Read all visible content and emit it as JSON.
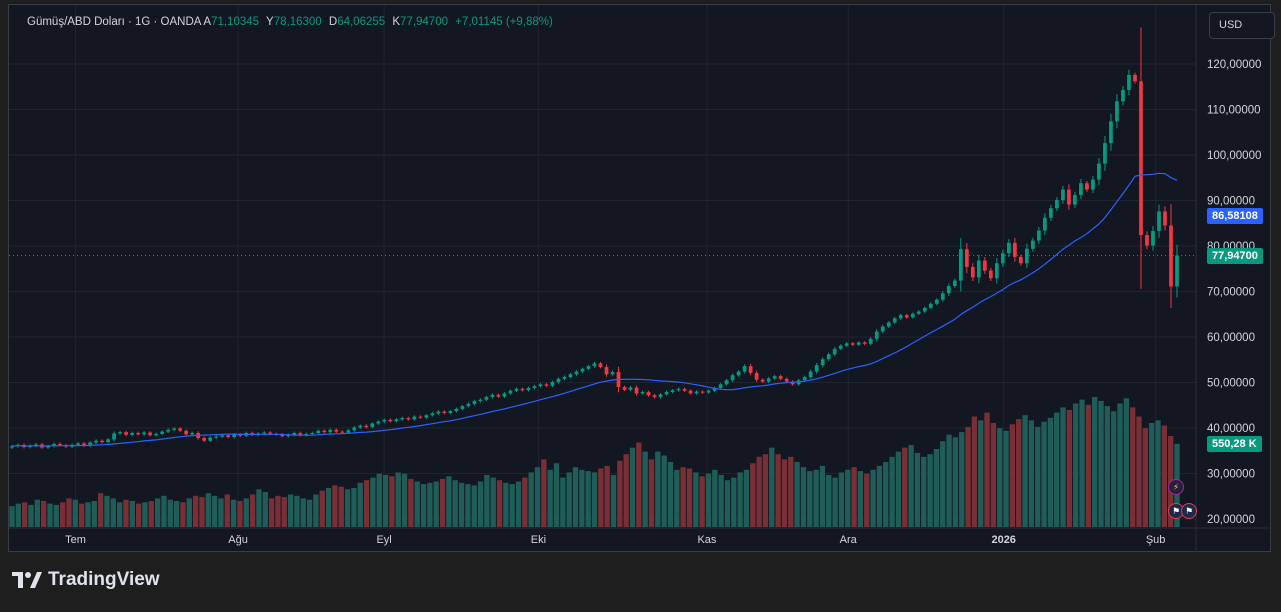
{
  "legend": {
    "symbol": "Gümüş/ABD Doları · 1G · OANDA",
    "open_label": "A",
    "open": "71,10345",
    "high_label": "Y",
    "high": "78,16300",
    "low_label": "D",
    "low": "64,06255",
    "close_label": "K",
    "close": "77,94700",
    "change": "+7,01145 (+9,88%)"
  },
  "currency_button": "USD",
  "brand": "TradingView",
  "price_tags": {
    "ma": "86,58108",
    "last": "77,94700",
    "volume": "550,28 K"
  },
  "colors": {
    "up": "#089981",
    "down": "#f23645",
    "ma": "#2962ff",
    "background": "#131722",
    "vol_up": "#1f5e58",
    "vol_down": "#7a2f36"
  },
  "chart_data": {
    "type": "candlestick",
    "ylim": [
      20,
      124
    ],
    "yticks": [
      "120,00000",
      "110,00000",
      "100,00000",
      "90,00000",
      "80,00000",
      "70,00000",
      "60,00000",
      "50,00000",
      "40,00000",
      "30,00000",
      "20,00000"
    ],
    "ytick_values": [
      120,
      110,
      100,
      90,
      80,
      70,
      60,
      50,
      40,
      30,
      20
    ],
    "xticks": [
      {
        "label": "Tem",
        "pos": 0.056
      },
      {
        "label": "Ağu",
        "pos": 0.193
      },
      {
        "label": "Eyl",
        "pos": 0.316
      },
      {
        "label": "Eki",
        "pos": 0.446
      },
      {
        "label": "Kas",
        "pos": 0.588
      },
      {
        "label": "Ara",
        "pos": 0.707
      },
      {
        "label": "2026",
        "pos": 0.838,
        "bold": true
      },
      {
        "label": "Şub",
        "pos": 0.966
      }
    ],
    "closes": [
      36.0,
      36.3,
      35.8,
      36.1,
      36.4,
      35.7,
      36.0,
      36.5,
      36.2,
      35.9,
      36.3,
      36.6,
      36.1,
      36.8,
      37.2,
      36.9,
      37.5,
      38.8,
      39.1,
      38.5,
      38.9,
      38.6,
      39.0,
      38.4,
      38.7,
      39.2,
      39.6,
      39.9,
      39.4,
      38.6,
      38.9,
      37.8,
      37.2,
      37.9,
      38.1,
      38.4,
      38.0,
      38.6,
      38.3,
      38.9,
      38.5,
      38.8,
      39.0,
      38.7,
      38.6,
      38.2,
      38.5,
      38.9,
      38.4,
      38.7,
      38.9,
      39.4,
      39.1,
      39.6,
      39.2,
      39.0,
      39.5,
      40.1,
      40.5,
      40.2,
      41.0,
      41.4,
      41.8,
      41.5,
      41.9,
      42.2,
      41.9,
      42.5,
      42.3,
      42.8,
      43.2,
      43.6,
      43.3,
      43.7,
      44.2,
      44.8,
      45.3,
      45.9,
      46.2,
      46.8,
      47.3,
      46.9,
      47.6,
      48.2,
      48.6,
      48.3,
      48.8,
      49.2,
      49.6,
      49.3,
      50.1,
      50.8,
      51.2,
      51.8,
      52.4,
      53.0,
      53.6,
      54.2,
      53.4,
      51.8,
      52.3,
      49.0,
      48.4,
      48.9,
      47.6,
      47.9,
      47.2,
      46.8,
      47.4,
      47.9,
      48.3,
      48.6,
      48.2,
      47.6,
      48.0,
      47.8,
      48.2,
      48.8,
      49.6,
      50.5,
      51.6,
      52.4,
      53.6,
      52.1,
      50.6,
      50.2,
      50.9,
      51.4,
      50.8,
      50.2,
      49.6,
      50.5,
      51.2,
      52.4,
      53.8,
      55.1,
      56.2,
      57.4,
      58.1,
      58.6,
      58.3,
      58.8,
      58.5,
      59.6,
      61.2,
      62.3,
      63.2,
      64.1,
      64.8,
      64.3,
      65.1,
      65.6,
      66.4,
      67.3,
      68.2,
      69.6,
      71.2,
      72.4,
      79.3,
      75.4,
      73.1,
      76.8,
      74.6,
      72.9,
      76.2,
      78.4,
      80.7,
      77.6,
      76.2,
      79.4,
      81.2,
      83.4,
      86.2,
      88.3,
      90.1,
      92.4,
      89.1,
      91.2,
      93.8,
      92.4,
      94.6,
      98.1,
      102.6,
      107.4,
      111.8,
      114.3,
      117.6,
      116.2,
      82.4,
      80.1,
      83.3,
      87.6,
      84.5,
      71.1,
      77.9
    ],
    "ma_note": "20-period moving average",
    "volume_levels": [
      0.16,
      0.18,
      0.19,
      0.17,
      0.21,
      0.2,
      0.18,
      0.17,
      0.19,
      0.22,
      0.21,
      0.18,
      0.19,
      0.2,
      0.26,
      0.24,
      0.22,
      0.19,
      0.21,
      0.2,
      0.18,
      0.19,
      0.2,
      0.22,
      0.24,
      0.21,
      0.2,
      0.19,
      0.22,
      0.24,
      0.23,
      0.26,
      0.24,
      0.22,
      0.25,
      0.21,
      0.2,
      0.22,
      0.25,
      0.29,
      0.27,
      0.22,
      0.24,
      0.23,
      0.25,
      0.24,
      0.22,
      0.21,
      0.25,
      0.28,
      0.3,
      0.32,
      0.31,
      0.29,
      0.3,
      0.34,
      0.36,
      0.38,
      0.41,
      0.4,
      0.39,
      0.42,
      0.41,
      0.37,
      0.35,
      0.33,
      0.34,
      0.35,
      0.37,
      0.39,
      0.36,
      0.34,
      0.33,
      0.32,
      0.35,
      0.4,
      0.38,
      0.36,
      0.34,
      0.33,
      0.35,
      0.38,
      0.42,
      0.46,
      0.52,
      0.44,
      0.49,
      0.38,
      0.42,
      0.46,
      0.44,
      0.43,
      0.42,
      0.45,
      0.47,
      0.4,
      0.51,
      0.56,
      0.61,
      0.65,
      0.58,
      0.52,
      0.58,
      0.55,
      0.5,
      0.44,
      0.46,
      0.45,
      0.42,
      0.39,
      0.41,
      0.44,
      0.4,
      0.36,
      0.38,
      0.42,
      0.44,
      0.49,
      0.54,
      0.56,
      0.61,
      0.56,
      0.52,
      0.54,
      0.5,
      0.46,
      0.43,
      0.44,
      0.47,
      0.4,
      0.38,
      0.42,
      0.44,
      0.46,
      0.43,
      0.41,
      0.44,
      0.47,
      0.5,
      0.54,
      0.58,
      0.61,
      0.63,
      0.57,
      0.54,
      0.56,
      0.6,
      0.66,
      0.71,
      0.69,
      0.73,
      0.77,
      0.85,
      0.82,
      0.88,
      0.8,
      0.76,
      0.74,
      0.79,
      0.83,
      0.86,
      0.82,
      0.77,
      0.81,
      0.84,
      0.88,
      0.92,
      0.9,
      0.95,
      0.98,
      0.94,
      1.0,
      0.97,
      0.93,
      0.89,
      0.95,
      0.99,
      0.92,
      0.85,
      0.76,
      0.8,
      0.82,
      0.78,
      0.7,
      0.64
    ]
  }
}
